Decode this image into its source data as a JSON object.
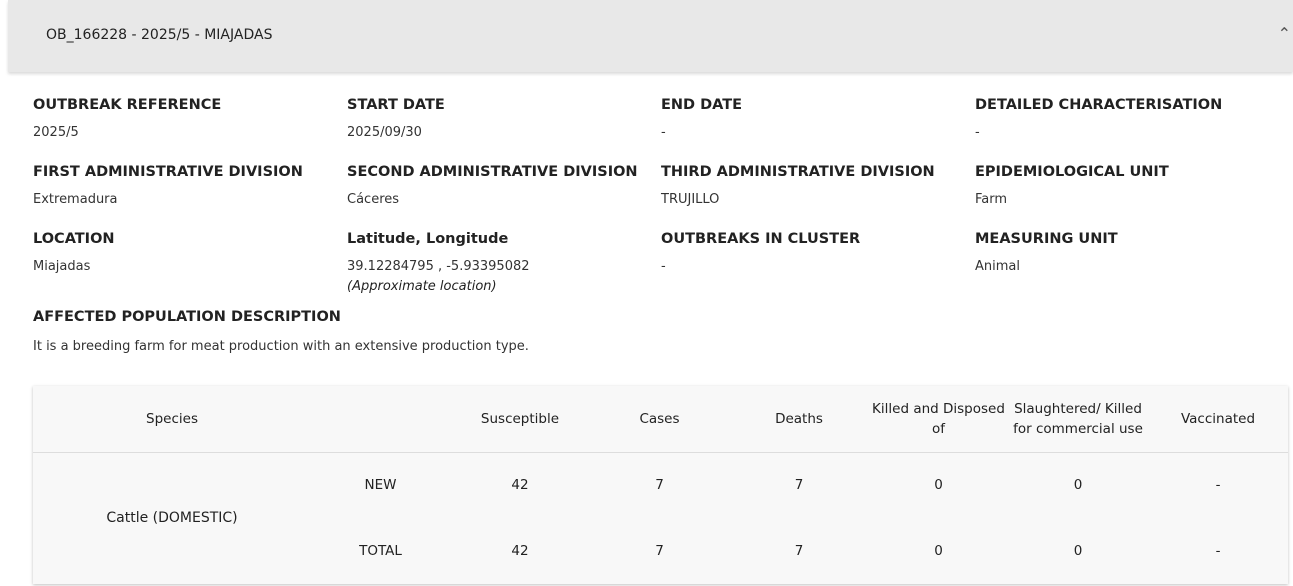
{
  "header": {
    "title": "OB_166228 - 2025/5 - MIAJADAS"
  },
  "fields": [
    {
      "label": "OUTBREAK REFERENCE",
      "value": "2025/5"
    },
    {
      "label": "START DATE",
      "value": "2025/09/30"
    },
    {
      "label": "END DATE",
      "value": "-"
    },
    {
      "label": "DETAILED CHARACTERISATION",
      "value": "-"
    },
    {
      "label": "FIRST ADMINISTRATIVE DIVISION",
      "value": "Extremadura"
    },
    {
      "label": "SECOND ADMINISTRATIVE DIVISION",
      "value": "Cáceres"
    },
    {
      "label": "THIRD ADMINISTRATIVE DIVISION",
      "value": "TRUJILLO"
    },
    {
      "label": "EPIDEMIOLOGICAL UNIT",
      "value": "Farm"
    },
    {
      "label": "LOCATION",
      "value": "Miajadas"
    },
    {
      "label": "Latitude, Longitude",
      "value": "39.12284795 , -5.93395082",
      "note": "(Approximate location)"
    },
    {
      "label": "OUTBREAKS IN CLUSTER",
      "value": "-"
    },
    {
      "label": "MEASURING UNIT",
      "value": "Animal"
    }
  ],
  "population": {
    "label": "AFFECTED POPULATION DESCRIPTION",
    "value": "It is a breeding farm for meat production with an extensive production type."
  },
  "table": {
    "headers": [
      "Species",
      "Susceptible",
      "Cases",
      "Deaths",
      "Killed and Disposed of",
      "Slaughtered/ Killed for commercial use",
      "Vaccinated"
    ],
    "species": "Cattle (DOMESTIC)",
    "rows": [
      [
        "NEW",
        42,
        7,
        7,
        0,
        0,
        "-"
      ],
      [
        "TOTAL",
        42,
        7,
        7,
        0,
        0,
        "-"
      ]
    ]
  }
}
